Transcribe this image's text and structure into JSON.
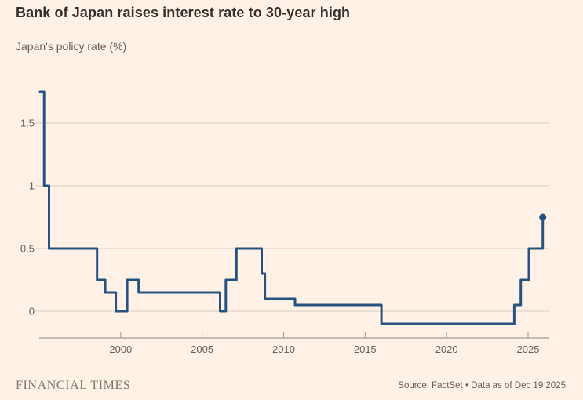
{
  "header": {
    "title": "Bank of Japan raises interest rate to 30-year high",
    "subtitle": "Japan's policy rate (%)"
  },
  "footer": {
    "brand": "FINANCIAL TIMES",
    "source": "Source: FactSet • Data as of Dec 19 2025"
  },
  "colors": {
    "background": "#FFF1E5",
    "line": "#265280",
    "end_dot": "#265280",
    "grid": "#d8cec3",
    "axis": "#a29a90",
    "title_text": "#33302E",
    "muted_text": "#66605C",
    "brand_text": "#7E756B"
  },
  "chart_data": {
    "type": "line",
    "style": "step-after",
    "title": "Bank of Japan raises interest rate to 30-year high",
    "subtitle": "Japan's policy rate (%)",
    "ylabel": "Policy rate (%)",
    "xlabel": "",
    "grid": "horizontal-only",
    "legend": "none",
    "xlim": [
      1995,
      2026.3
    ],
    "ylim": [
      -0.22,
      1.82
    ],
    "x_ticks": [
      2000,
      2005,
      2010,
      2015,
      2020,
      2025
    ],
    "x_tick_labels": [
      "2000",
      "2005",
      "2010",
      "2015",
      "2020",
      "2025"
    ],
    "y_ticks": [
      0,
      0.5,
      1,
      1.5
    ],
    "y_tick_labels": [
      "0",
      "0.5",
      "1",
      "1.5"
    ],
    "series": [
      {
        "name": "Japan policy rate (%)",
        "steps": [
          {
            "year": 1995.05,
            "rate": 1.75
          },
          {
            "year": 1995.3,
            "rate": 1.0
          },
          {
            "year": 1995.6,
            "rate": 0.5
          },
          {
            "year": 1998.55,
            "rate": 0.25
          },
          {
            "year": 1999.05,
            "rate": 0.15
          },
          {
            "year": 1999.7,
            "rate": 0.0
          },
          {
            "year": 2000.4,
            "rate": 0.25
          },
          {
            "year": 2001.1,
            "rate": 0.15
          },
          {
            "year": 2006.1,
            "rate": 0.0
          },
          {
            "year": 2006.45,
            "rate": 0.25
          },
          {
            "year": 2007.1,
            "rate": 0.5
          },
          {
            "year": 2008.65,
            "rate": 0.3
          },
          {
            "year": 2008.85,
            "rate": 0.1
          },
          {
            "year": 2010.7,
            "rate": 0.05
          },
          {
            "year": 2016.0,
            "rate": -0.1
          },
          {
            "year": 2024.15,
            "rate": 0.05
          },
          {
            "year": 2024.55,
            "rate": 0.25
          },
          {
            "year": 2025.05,
            "rate": 0.5
          },
          {
            "year": 2025.9,
            "rate": 0.75
          }
        ]
      }
    ],
    "end_marker": {
      "year": 2025.9,
      "rate": 0.75
    }
  }
}
